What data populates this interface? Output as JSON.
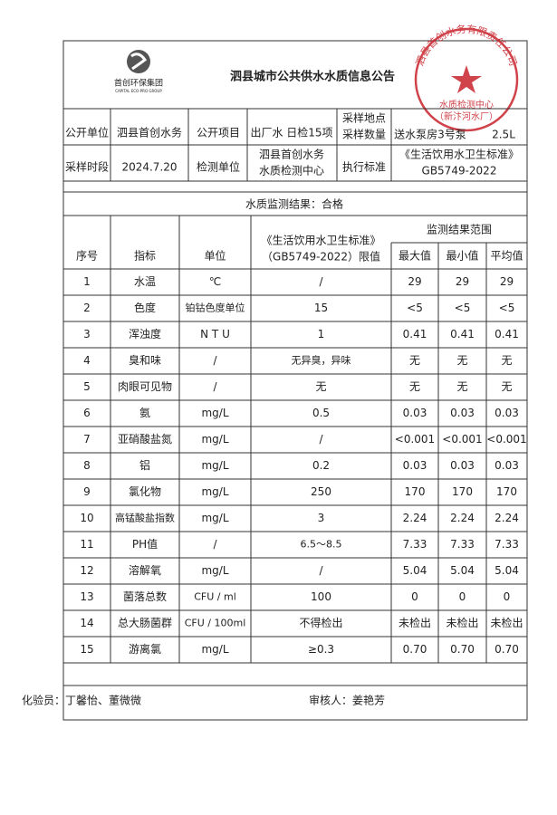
{
  "header": {
    "logo_text": "首创环保集团",
    "logo_subtext": "CAPITAL ECO-PRO GROUP",
    "title": "泗县城市公共供水水质信息公告",
    "stamp": {
      "ring": "泗县首创水务有限责任公司",
      "line1": "水质检测中心",
      "line2": "（新汴河水厂）"
    }
  },
  "info": {
    "row1": [
      "公开单位",
      "泗县首创水务",
      "公开项目",
      "出厂水 日检15项",
      [
        "采样地点",
        "采样数量"
      ],
      "送水泵房3号泵",
      "2.5L"
    ],
    "row2": [
      "采样时段",
      "2024.7.20",
      "检测单位",
      [
        "泗县首创水务",
        "水质检测中心"
      ],
      "执行标准",
      [
        "《生活饮用水卫生标准》",
        "GB5749-2022"
      ]
    ]
  },
  "result": "水质监测结果：合格",
  "table": {
    "columns": [
      "序号",
      "指标",
      "单位",
      [
        "《生活饮用水卫生标准》",
        "（GB5749-2022）限值"
      ],
      "最大值",
      "最小值",
      "平均值"
    ],
    "group_header": "监测结果范围",
    "rows": [
      [
        "1",
        "水温",
        "℃",
        "/",
        "29",
        "29",
        "29"
      ],
      [
        "2",
        "色度",
        "铂钴色度单位",
        "15",
        "<5",
        "<5",
        "<5"
      ],
      [
        "3",
        "浑浊度",
        "N T U",
        "1",
        "0.41",
        "0.41",
        "0.41"
      ],
      [
        "4",
        "臭和味",
        "/",
        "无异臭，异味",
        "无",
        "无",
        "无"
      ],
      [
        "5",
        "肉眼可见物",
        "/",
        "无",
        "无",
        "无",
        "无"
      ],
      [
        "6",
        "氨",
        "mg/L",
        "0.5",
        "0.03",
        "0.03",
        "0.03"
      ],
      [
        "7",
        "亚硝酸盐氮",
        "mg/L",
        "/",
        "<0.001",
        "<0.001",
        "<0.001"
      ],
      [
        "8",
        "铝",
        "mg/L",
        "0.2",
        "0.03",
        "0.03",
        "0.03"
      ],
      [
        "9",
        "氯化物",
        "mg/L",
        "250",
        "170",
        "170",
        "170"
      ],
      [
        "10",
        "高锰酸盐指数",
        "mg/L",
        "3",
        "2.24",
        "2.24",
        "2.24"
      ],
      [
        "11",
        "PH值",
        "/",
        "6.5～8.5",
        "7.33",
        "7.33",
        "7.33"
      ],
      [
        "12",
        "溶解氧",
        "mg/L",
        "/",
        "5.04",
        "5.04",
        "5.04"
      ],
      [
        "13",
        "菌落总数",
        "CFU / ml",
        "100",
        "0",
        "0",
        "0"
      ],
      [
        "14",
        "总大肠菌群",
        "CFU / 100ml",
        "不得检出",
        "未检出",
        "未检出",
        "未检出"
      ],
      [
        "15",
        "游离氯",
        "mg/L",
        "≥0.3",
        "0.70",
        "0.70",
        "0.70"
      ]
    ]
  },
  "footer": {
    "tester": "化验员：丁馨怡、董微微",
    "reviewer": "审核人：姜艳芳"
  }
}
